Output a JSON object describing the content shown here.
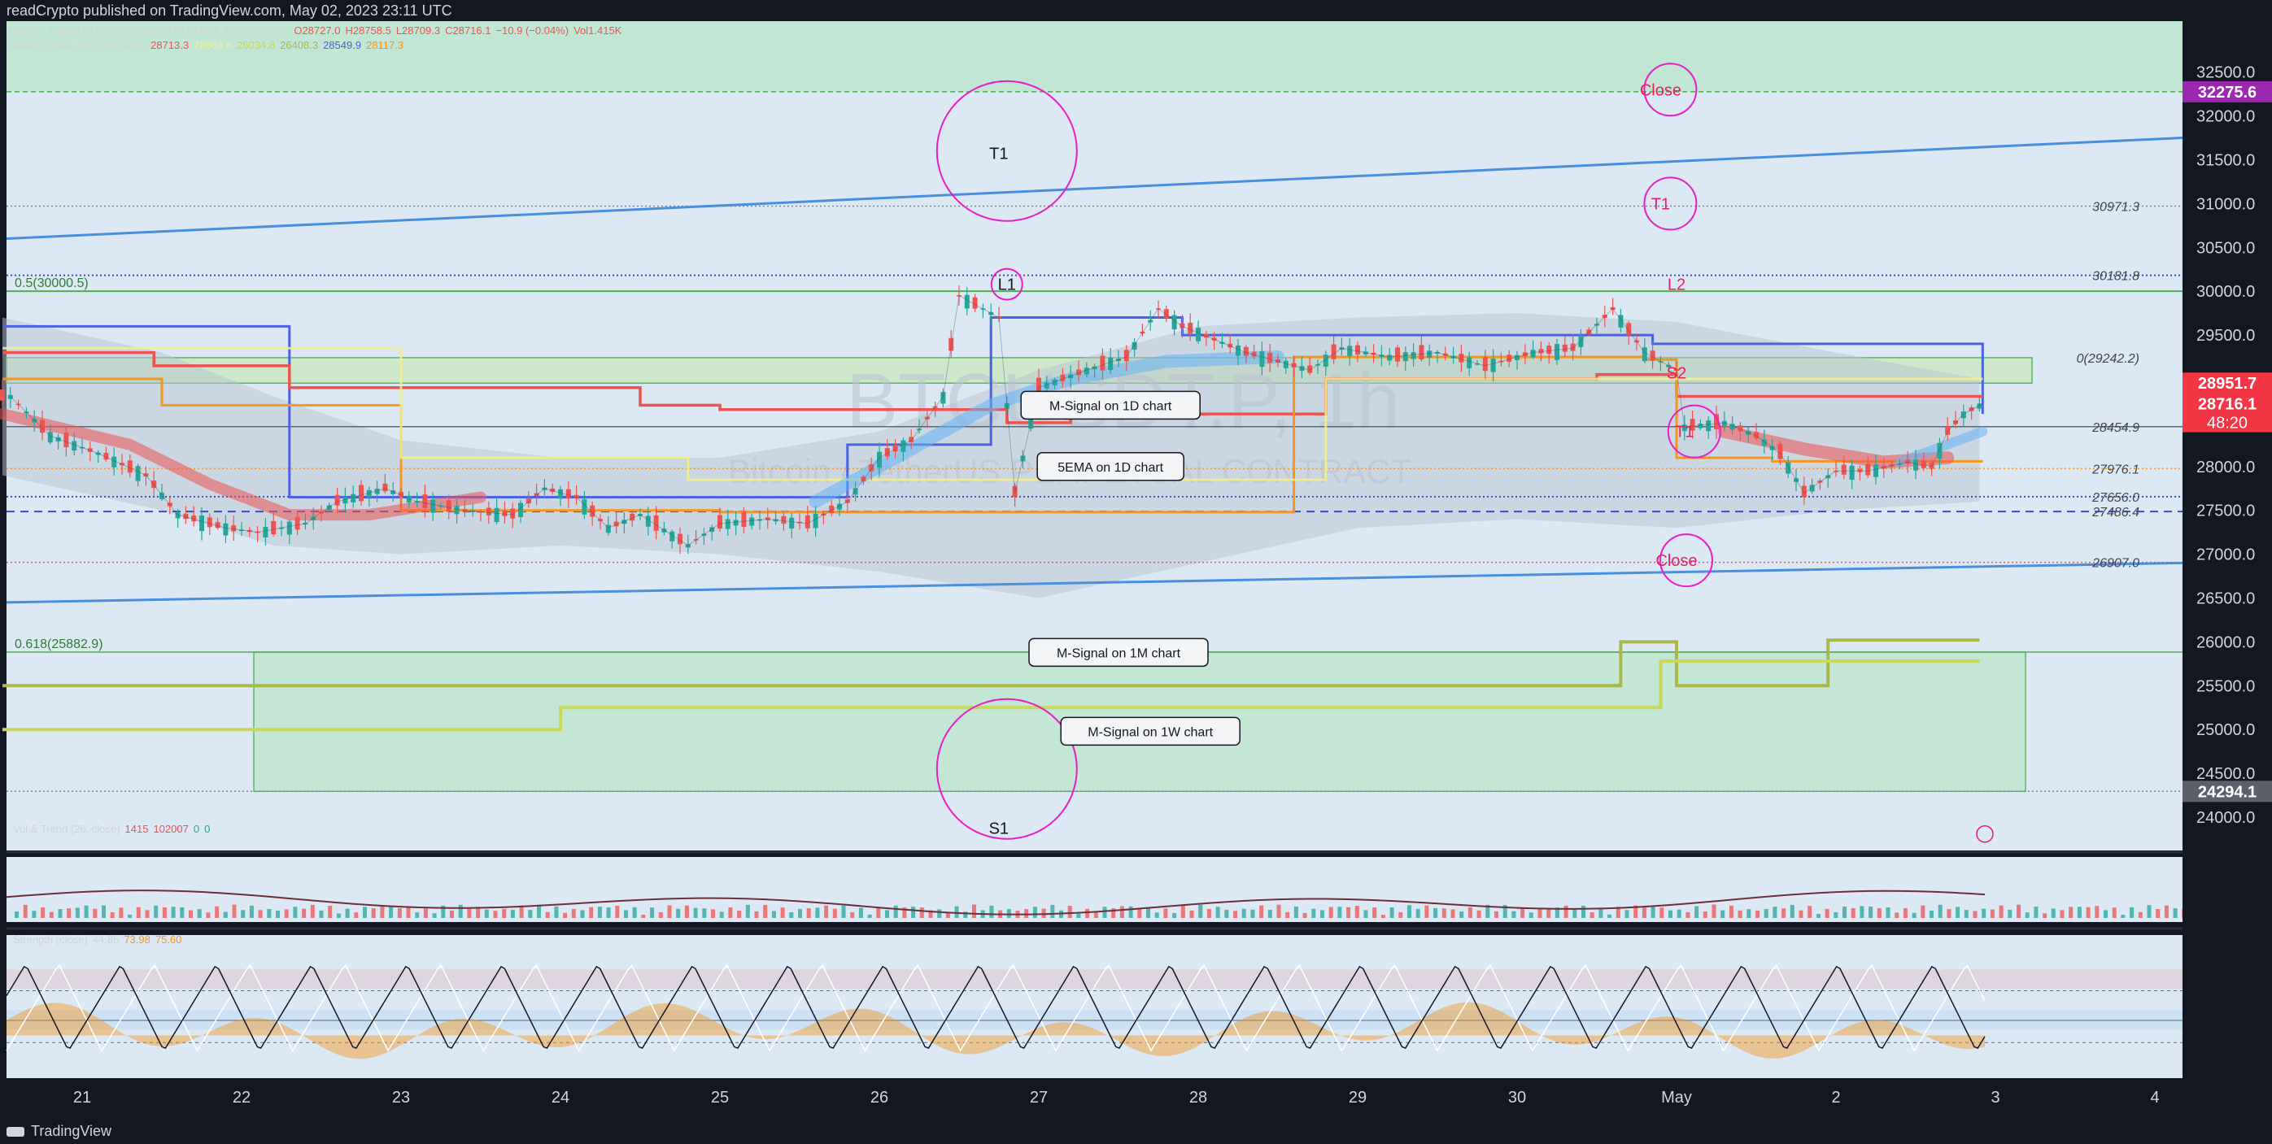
{
  "header": {
    "published": "readCrypto published on TradingView.com, May 02, 2023 23:11 UTC",
    "symbol": "Bitcoin / TetherUS PERPETUAL CONTRACT, 1h, BINANCE",
    "ohlc": {
      "o": "O28727.0",
      "h": "H28758.5",
      "l": "L28709.3",
      "c": "C28716.1",
      "chg": "−10.9 (−0.04%)",
      "vol": "Vol1.415K"
    },
    "ha_ms": {
      "label": "HA-MS (EMA, 120, 240, 480)",
      "v1": "28713.3",
      "v2": "28664.8",
      "v3": "26034.8",
      "v4": "26408.3",
      "v5": "28549.9",
      "v6": "28117.3"
    }
  },
  "watermark": {
    "ticker": "BTCUSDT.P, 1h",
    "name": "Bitcoin / TetherUS PERPETUAL CONTRACT"
  },
  "footer": {
    "brand": "TradingView"
  },
  "colors": {
    "bg": "#131722",
    "pane": "#dce8f4",
    "green_zone": "#bfe6d0",
    "magenta": "#e91ec7",
    "blue_line": "#4a8fe0",
    "orange": "#f5961e",
    "red": "#ef5350",
    "yellow": "#f2f08a",
    "olive": "#aab84a",
    "purple_tag": "#9c27b0",
    "red_tag": "#f23645"
  },
  "chart_data": [
    {
      "type": "line",
      "title": "Bitcoin / TetherUS PERPETUAL CONTRACT, 1h, BINANCE",
      "ylim": [
        23900,
        32750
      ],
      "x_ticks": [
        "21",
        "22",
        "23",
        "24",
        "25",
        "26",
        "27",
        "28",
        "29",
        "30",
        "May",
        "2",
        "3",
        "4"
      ],
      "y_ticks": [
        "24000.0",
        "24500.0",
        "25000.0",
        "25500.0",
        "26000.0",
        "26500.0",
        "27000.0",
        "27500.0",
        "28000.0",
        "28500.0",
        "29000.0",
        "29500.0",
        "30000.0",
        "30500.0",
        "31000.0",
        "31500.0",
        "32000.0",
        "32500.0"
      ],
      "price_tags": [
        {
          "text": "32275.6",
          "value": 32275.6,
          "color": "#9c27b0"
        },
        {
          "text": "28951.7",
          "value": 28951.7,
          "color": "#f23645"
        },
        {
          "text": "28716.1",
          "sub": "48:20",
          "value": 28716.1,
          "color": "#f23645"
        },
        {
          "text": "24294.1",
          "value": 24294.1,
          "color": "#5d606b"
        }
      ],
      "level_labels": [
        {
          "text": "30971.3",
          "value": 30971.3
        },
        {
          "text": "30181.8",
          "value": 30181.8
        },
        {
          "text": "0(29242.2)",
          "value": 29242.2
        },
        {
          "text": "28454.9",
          "value": 28454.9
        },
        {
          "text": "27976.1",
          "value": 27976.1
        },
        {
          "text": "27656.0",
          "value": 27656.0
        },
        {
          "text": "27486.4",
          "value": 27486.4
        },
        {
          "text": "26907.0",
          "value": 26907.0
        }
      ],
      "fib_labels": [
        {
          "text": "0.5(30000.5)",
          "value": 30000.5
        },
        {
          "text": "0.618(25882.9)",
          "value": 25882.9
        }
      ],
      "annotations": [
        {
          "text": "T1",
          "kind": "circle-big",
          "x": 26.8,
          "value": 31600
        },
        {
          "text": "L1",
          "kind": "circle-small",
          "x": 26.8,
          "value": 30080
        },
        {
          "text": "S1",
          "kind": "circle-big",
          "x": 26.8,
          "value": 24550
        },
        {
          "text": "Close",
          "kind": "circle-right",
          "x": 30.9,
          "value": 32300
        },
        {
          "text": "T1",
          "kind": "circle-right",
          "x": 30.9,
          "value": 31000
        },
        {
          "text": "L2",
          "kind": "text-right",
          "x": 31.0,
          "value": 30080
        },
        {
          "text": "S2",
          "kind": "text-right",
          "x": 31.0,
          "value": 29070
        },
        {
          "text": "T1",
          "kind": "circle-right",
          "x": 31.05,
          "value": 28400
        },
        {
          "text": "Close",
          "kind": "circle-right",
          "x": 31.0,
          "value": 26930
        }
      ],
      "callouts": [
        {
          "text": "M-Signal on 1D chart",
          "x": 27.45,
          "value": 28700
        },
        {
          "text": "5EMA on 1D chart",
          "x": 27.45,
          "value": 28000
        },
        {
          "text": "M-Signal on 1M chart",
          "x": 27.5,
          "value": 25880
        },
        {
          "text": "M-Signal on 1W chart",
          "x": 27.7,
          "value": 24980
        }
      ],
      "close_series": [
        {
          "t": 20.55,
          "v": 28800
        },
        {
          "t": 20.8,
          "v": 28350
        },
        {
          "t": 21.1,
          "v": 28150
        },
        {
          "t": 21.4,
          "v": 27900
        },
        {
          "t": 21.6,
          "v": 27450
        },
        {
          "t": 21.9,
          "v": 27300
        },
        {
          "t": 22.1,
          "v": 27250
        },
        {
          "t": 22.4,
          "v": 27350
        },
        {
          "t": 22.6,
          "v": 27600
        },
        {
          "t": 22.9,
          "v": 27750
        },
        {
          "t": 23.1,
          "v": 27600
        },
        {
          "t": 23.4,
          "v": 27500
        },
        {
          "t": 23.7,
          "v": 27450
        },
        {
          "t": 23.9,
          "v": 27750
        },
        {
          "t": 24.1,
          "v": 27650
        },
        {
          "t": 24.3,
          "v": 27300
        },
        {
          "t": 24.5,
          "v": 27450
        },
        {
          "t": 24.8,
          "v": 27100
        },
        {
          "t": 25.0,
          "v": 27350
        },
        {
          "t": 25.3,
          "v": 27400
        },
        {
          "t": 25.55,
          "v": 27350
        },
        {
          "t": 25.8,
          "v": 27600
        },
        {
          "t": 26.0,
          "v": 28100
        },
        {
          "t": 26.2,
          "v": 28300
        },
        {
          "t": 26.4,
          "v": 28800
        },
        {
          "t": 26.5,
          "v": 29950
        },
        {
          "t": 26.65,
          "v": 29800
        },
        {
          "t": 26.75,
          "v": 29700
        },
        {
          "t": 26.85,
          "v": 27700
        },
        {
          "t": 27.0,
          "v": 28900
        },
        {
          "t": 27.3,
          "v": 29100
        },
        {
          "t": 27.55,
          "v": 29250
        },
        {
          "t": 27.75,
          "v": 29800
        },
        {
          "t": 27.9,
          "v": 29600
        },
        {
          "t": 28.1,
          "v": 29450
        },
        {
          "t": 28.3,
          "v": 29300
        },
        {
          "t": 28.5,
          "v": 29200
        },
        {
          "t": 28.7,
          "v": 29100
        },
        {
          "t": 28.9,
          "v": 29350
        },
        {
          "t": 29.2,
          "v": 29250
        },
        {
          "t": 29.5,
          "v": 29300
        },
        {
          "t": 29.8,
          "v": 29150
        },
        {
          "t": 30.1,
          "v": 29300
        },
        {
          "t": 30.35,
          "v": 29350
        },
        {
          "t": 30.6,
          "v": 29800
        },
        {
          "t": 30.8,
          "v": 29300
        },
        {
          "t": 31.0,
          "v": 29100
        },
        {
          "t": 31.05,
          "v": 28450
        },
        {
          "t": 31.3,
          "v": 28500
        },
        {
          "t": 31.5,
          "v": 28350
        },
        {
          "t": 31.65,
          "v": 28150
        },
        {
          "t": 31.8,
          "v": 27700
        },
        {
          "t": 32.0,
          "v": 27950
        },
        {
          "t": 32.2,
          "v": 27950
        },
        {
          "t": 32.45,
          "v": 28050
        },
        {
          "t": 32.6,
          "v": 28000
        },
        {
          "t": 32.7,
          "v": 28400
        },
        {
          "t": 32.8,
          "v": 28600
        },
        {
          "t": 32.92,
          "v": 28716
        }
      ]
    },
    {
      "type": "bar",
      "title": "Vol & Trend (26, close)",
      "legend_values": [
        "1415",
        "102007",
        "0",
        "0"
      ],
      "y_ticks": [
        "200000",
        "0"
      ],
      "ylim": [
        0,
        300000
      ]
    },
    {
      "type": "line",
      "title": "Strength (close)",
      "legend_values": [
        "44.85",
        "73.98",
        "75.60"
      ],
      "y_ticks": [
        "80.00",
        "40.00",
        "0.00"
      ],
      "ylim": [
        -5,
        110
      ]
    }
  ]
}
